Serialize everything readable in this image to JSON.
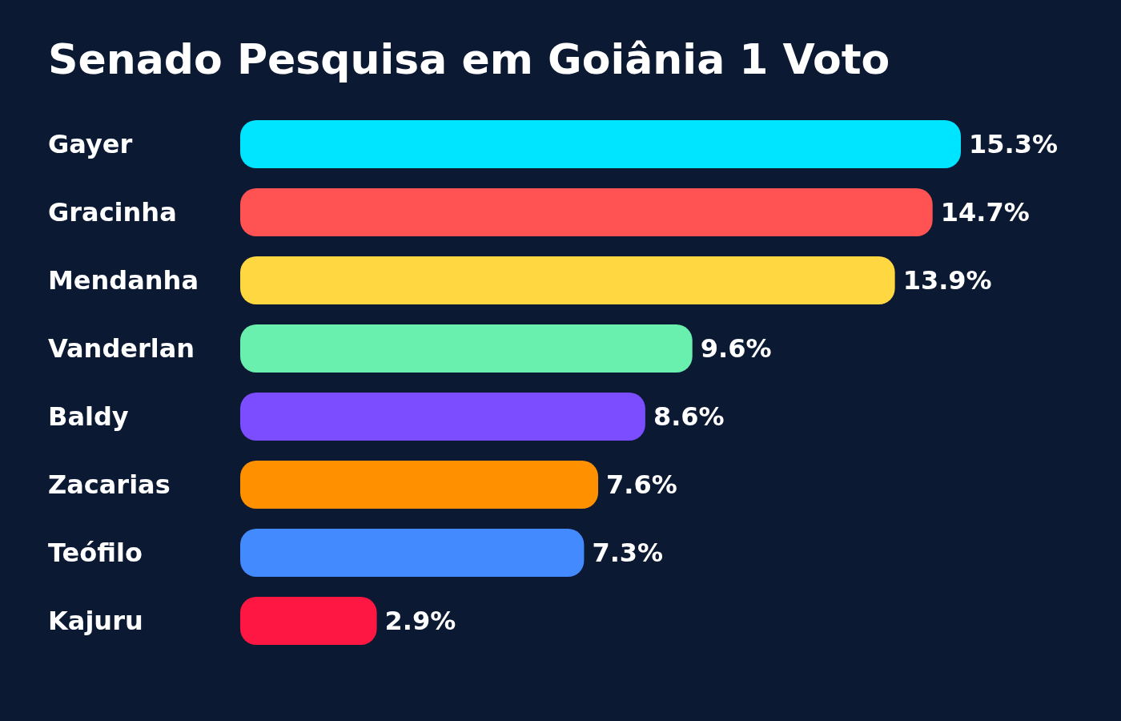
{
  "chart_data": {
    "type": "bar",
    "orientation": "horizontal",
    "title": "Senado Pesquisa em Goiânia 1 Voto",
    "categories": [
      "Gayer",
      "Gracinha",
      "Mendanha",
      "Vanderlan",
      "Baldy",
      "Zacarias",
      "Teófilo",
      "Kajuru"
    ],
    "values": [
      15.3,
      14.7,
      13.9,
      9.6,
      8.6,
      7.6,
      7.3,
      2.9
    ],
    "colors": [
      "#00e5ff",
      "#ff5252",
      "#ffd740",
      "#69f0ae",
      "#7c4dff",
      "#ff9100",
      "#448aff",
      "#ff1744"
    ],
    "value_labels": [
      "15.3%",
      "14.7%",
      "13.9%",
      "9.6%",
      "8.6%",
      "7.6%",
      "7.3%",
      "2.9%"
    ]
  }
}
